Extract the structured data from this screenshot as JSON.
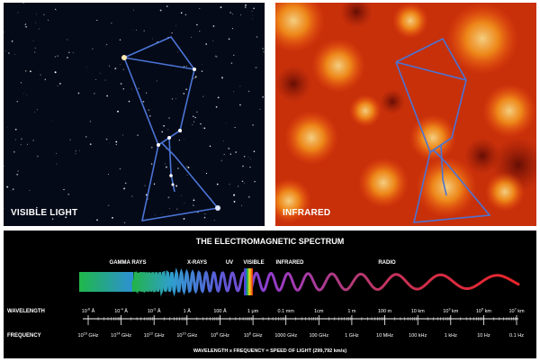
{
  "panels": {
    "visible": {
      "label": "VISIBLE LIGHT"
    },
    "infrared": {
      "label": "INFRARED"
    }
  },
  "spectrum": {
    "title": "THE ELECTROMAGNETIC SPECTRUM",
    "bands": [
      {
        "label": "GAMMA RAYS"
      },
      {
        "label": "X-RAYS"
      },
      {
        "label": "UV"
      },
      {
        "label": "VISIBLE"
      },
      {
        "label": "INFRARED"
      },
      {
        "label": "RADIO"
      }
    ],
    "wavelength_label": "WAVELENGTH",
    "frequency_label": "FREQUENCY",
    "wavelength_ticks": [
      {
        "base": "10",
        "exp": "-6",
        "unit": "Å"
      },
      {
        "base": "10",
        "exp": "-4",
        "unit": "Å"
      },
      {
        "base": "10",
        "exp": "-2",
        "unit": "Å"
      },
      {
        "base": "1 Å",
        "exp": "",
        "unit": ""
      },
      {
        "base": "100 Å",
        "exp": "",
        "unit": ""
      },
      {
        "base": "1 μm",
        "exp": "",
        "unit": ""
      },
      {
        "base": "0.1 mm",
        "exp": "",
        "unit": ""
      },
      {
        "base": "1cm",
        "exp": "",
        "unit": ""
      },
      {
        "base": "1 m",
        "exp": "",
        "unit": ""
      },
      {
        "base": "100 m",
        "exp": "",
        "unit": ""
      },
      {
        "base": "10 km",
        "exp": "",
        "unit": ""
      },
      {
        "base": "10",
        "exp": "3",
        "unit": "km"
      },
      {
        "base": "10",
        "exp": "5",
        "unit": "km"
      },
      {
        "base": "10",
        "exp": "7",
        "unit": "km"
      }
    ],
    "frequency_ticks": [
      {
        "base": "10",
        "exp": "16",
        "unit": "GHz"
      },
      {
        "base": "10",
        "exp": "14",
        "unit": "GHz"
      },
      {
        "base": "10",
        "exp": "12",
        "unit": "GHz"
      },
      {
        "base": "10",
        "exp": "10",
        "unit": "GHz"
      },
      {
        "base": "10",
        "exp": "8",
        "unit": "GHz"
      },
      {
        "base": "10",
        "exp": "6",
        "unit": "GHz"
      },
      {
        "base": "1000 GHz",
        "exp": "",
        "unit": ""
      },
      {
        "base": "100 GHz",
        "exp": "",
        "unit": ""
      },
      {
        "base": "1 GHz",
        "exp": "",
        "unit": ""
      },
      {
        "base": "10 MHz",
        "exp": "",
        "unit": ""
      },
      {
        "base": "100 kHz",
        "exp": "",
        "unit": ""
      },
      {
        "base": "1 kHz",
        "exp": "",
        "unit": ""
      },
      {
        "base": "10 Hz",
        "exp": "",
        "unit": ""
      },
      {
        "base": "0.1 Hz",
        "exp": "",
        "unit": ""
      }
    ],
    "formula": "WAVELENGTH x FREQUENCY = SPEED OF LIGHT (299,792 km/s)"
  },
  "colors": {
    "constellation_line": "#4a74d6",
    "gamma": "#22b34a",
    "xray": "#5a5cd8",
    "uv": "#8c3fd0",
    "infrared": "#b03a7a",
    "radio": "#e8262a"
  }
}
